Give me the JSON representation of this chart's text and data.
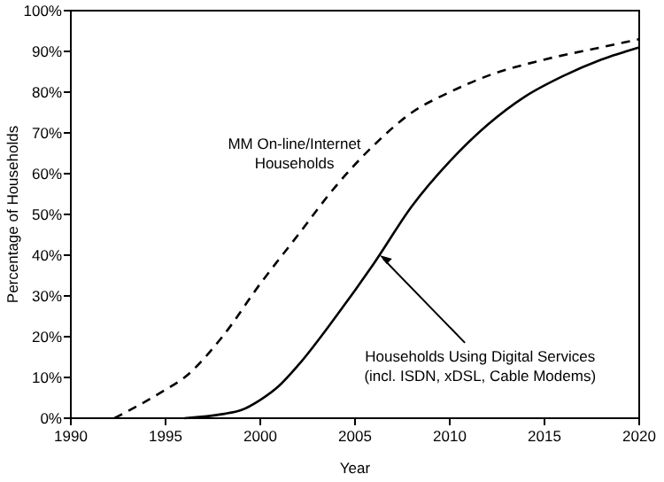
{
  "chart_data": {
    "type": "line",
    "xlabel": "Year",
    "ylabel": "Percentage of Households",
    "xlim": [
      1990,
      2020
    ],
    "xticks": [
      1990,
      1995,
      2000,
      2005,
      2010,
      2015,
      2020
    ],
    "ylim": [
      0,
      100
    ],
    "yticks": [
      {
        "value": 0,
        "label": "0%"
      },
      {
        "value": 10,
        "label": "10%"
      },
      {
        "value": 20,
        "label": "20%"
      },
      {
        "value": 30,
        "label": "30%"
      },
      {
        "value": 40,
        "label": "40%"
      },
      {
        "value": 50,
        "label": "50%"
      },
      {
        "value": 60,
        "label": "60%"
      },
      {
        "value": 70,
        "label": "70%"
      },
      {
        "value": 80,
        "label": "80%"
      },
      {
        "value": 90,
        "label": "90%"
      },
      {
        "value": 100,
        "label": "100%"
      }
    ],
    "grid": false,
    "legend": false,
    "series": [
      {
        "name": "MM On-line/Internet Households",
        "color": "#000000",
        "line_style": "dashed",
        "x": [
          1992.3,
          1995,
          1996,
          1998,
          2000,
          2002,
          2004,
          2006,
          2008,
          2010,
          2012,
          2015,
          2018,
          2020
        ],
        "values": [
          0,
          7,
          10,
          20,
          33,
          45,
          57,
          67,
          75,
          80,
          84,
          88,
          91,
          93
        ]
      },
      {
        "name": "Households Using Digital Services (incl. ISDN, xDSL, Cable Modems)",
        "color": "#000000",
        "line_style": "solid",
        "x": [
          1996,
          1998,
          1999,
          2000,
          2001,
          2002,
          2004,
          2006,
          2008,
          2010,
          2012,
          2014,
          2016,
          2018,
          2020
        ],
        "values": [
          0,
          1,
          2,
          4.5,
          8,
          13,
          25,
          38,
          52,
          63,
          72,
          79,
          84,
          88,
          91
        ]
      }
    ]
  }
}
